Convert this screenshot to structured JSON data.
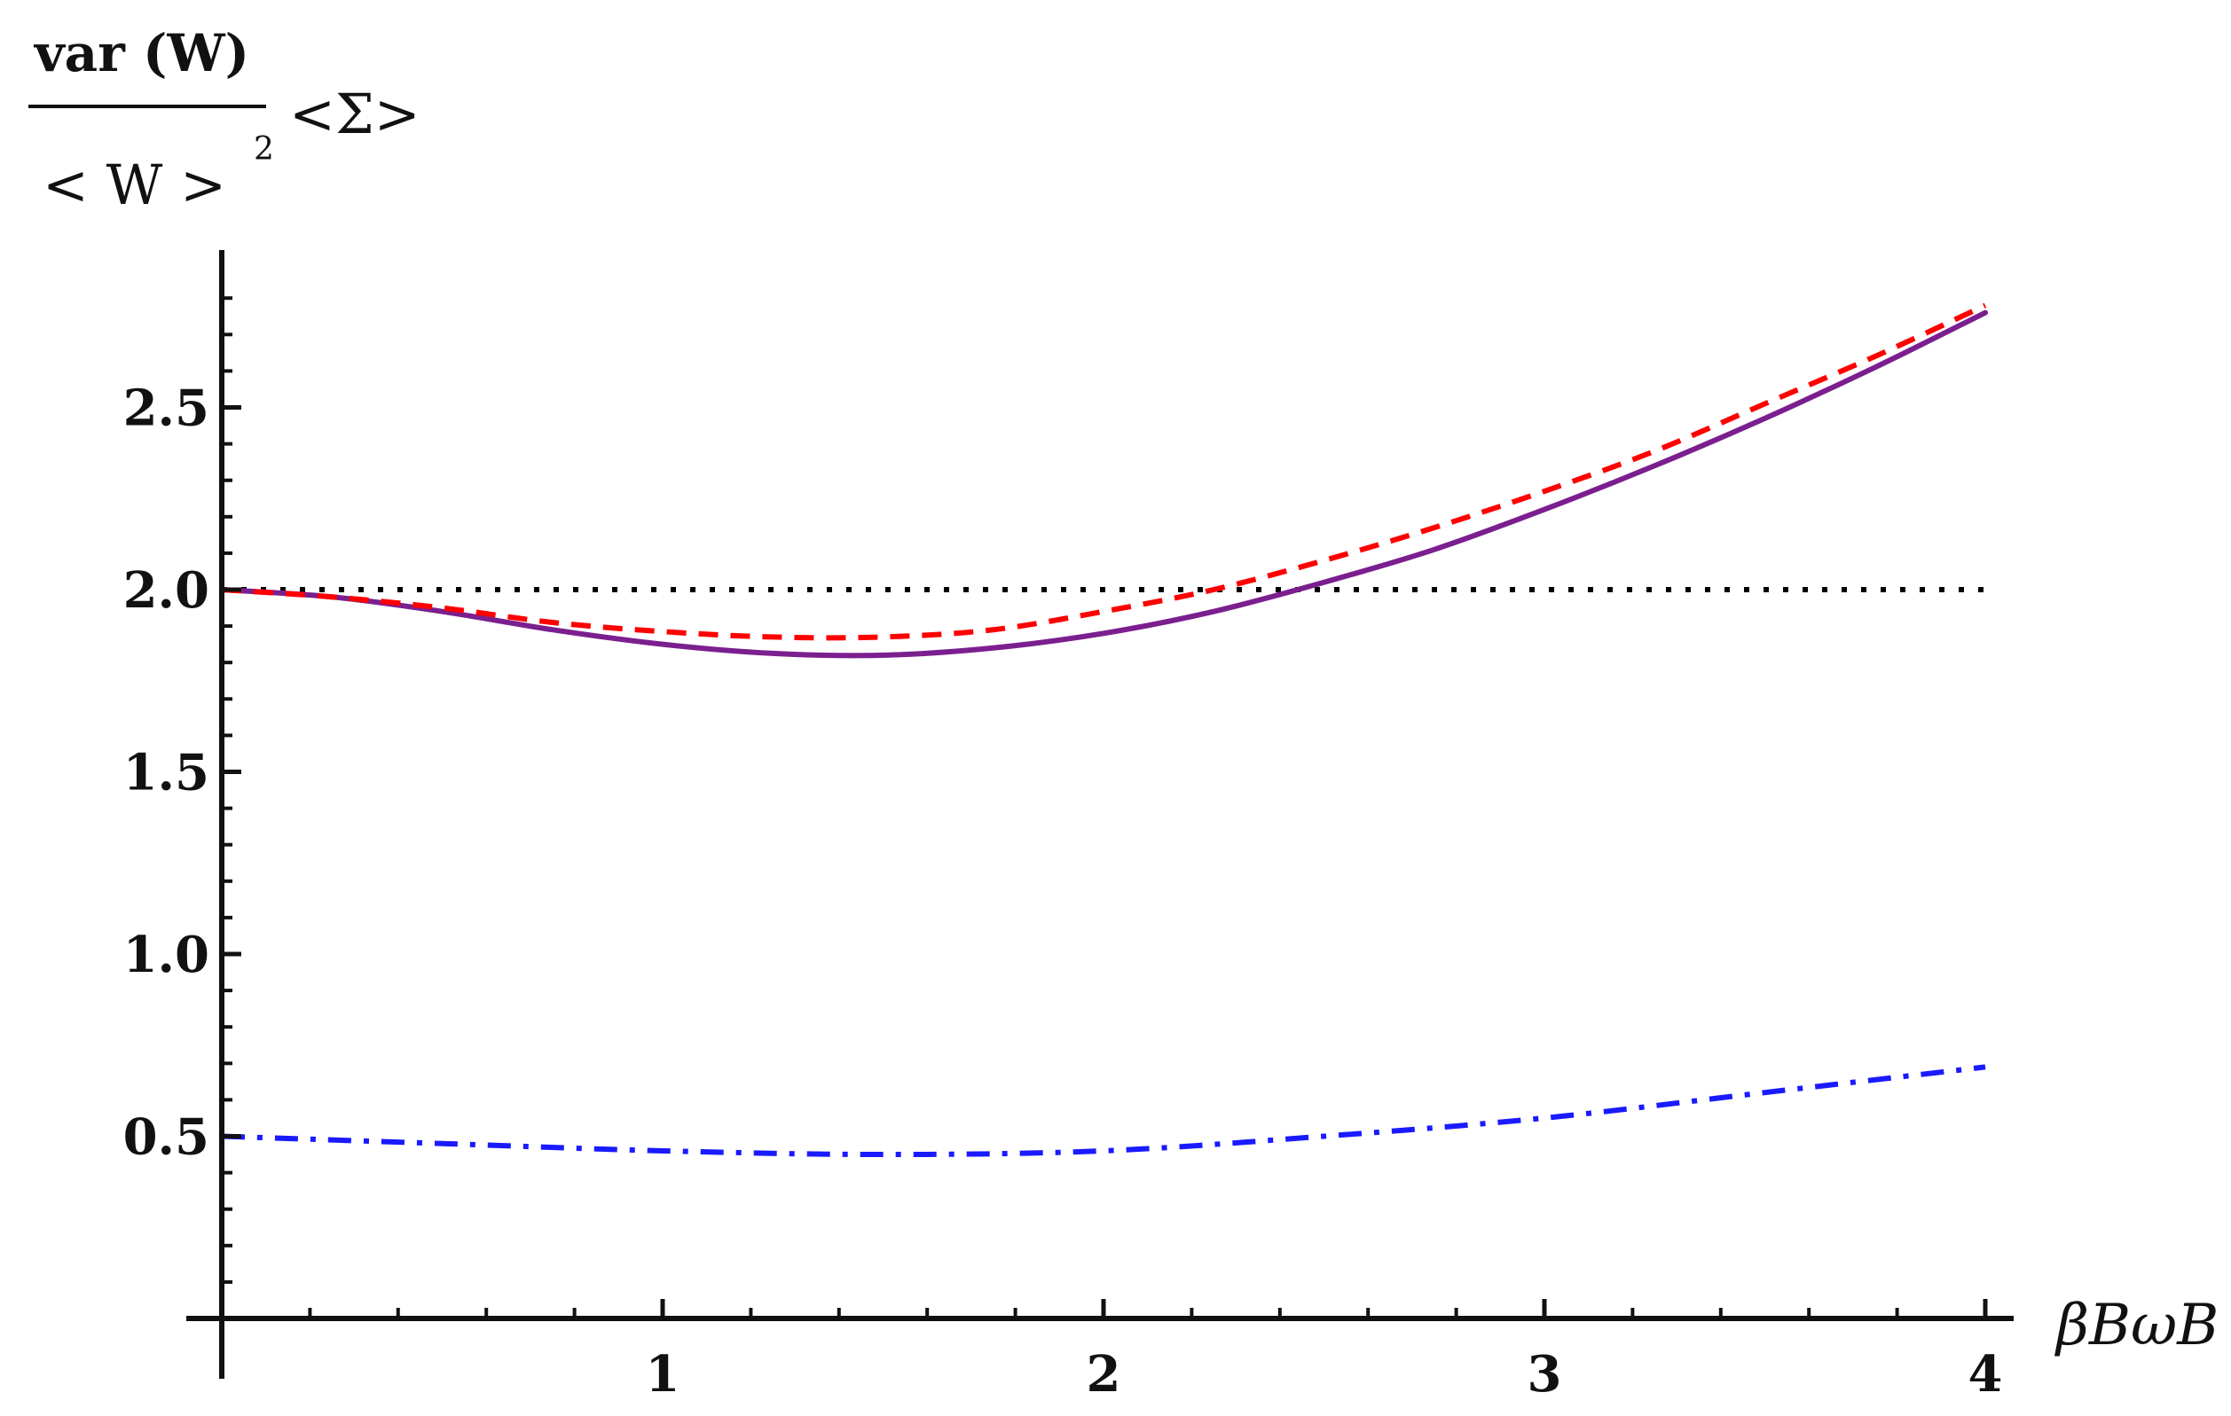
{
  "chart_data": {
    "type": "line",
    "xlabel": "βBωB",
    "ylabel": {
      "numerator": "var (W)",
      "denominator": "< W >",
      "denominator_superscript": "2",
      "suffix": "<Σ>"
    },
    "xlim": [
      0,
      4
    ],
    "ylim": [
      0,
      2.85
    ],
    "x_ticks": [
      1,
      2,
      3,
      4
    ],
    "y_ticks": [
      0.5,
      1.0,
      1.5,
      2.0,
      2.5
    ],
    "x_tick_labels": [
      "1",
      "2",
      "3",
      "4"
    ],
    "y_tick_labels": [
      "0.5",
      "1.0",
      "1.5",
      "2.0",
      "2.5"
    ],
    "grid": false,
    "legend": "none",
    "series": [
      {
        "style": "dotted",
        "color": "#000000",
        "x": [
          0,
          4
        ],
        "y": [
          2.0,
          2.0
        ]
      },
      {
        "style": "solid",
        "color": "#7b1f8f",
        "x": [
          0,
          0.25,
          0.5,
          0.75,
          1.0,
          1.25,
          1.5,
          1.75,
          2.0,
          2.25,
          2.5,
          2.75,
          3.0,
          3.25,
          3.5,
          3.75,
          4.0
        ],
        "y": [
          2.0,
          1.98,
          1.94,
          1.89,
          1.85,
          1.825,
          1.82,
          1.84,
          1.88,
          1.94,
          2.02,
          2.11,
          2.22,
          2.34,
          2.47,
          2.61,
          2.76
        ]
      },
      {
        "style": "dashed",
        "color": "#ff0000",
        "x": [
          0,
          0.25,
          0.5,
          0.75,
          1.0,
          1.25,
          1.5,
          1.75,
          2.0,
          2.25,
          2.5,
          2.75,
          3.0,
          3.25,
          3.5,
          3.75,
          4.0
        ],
        "y": [
          2.0,
          1.98,
          1.95,
          1.91,
          1.885,
          1.87,
          1.87,
          1.89,
          1.94,
          2.0,
          2.08,
          2.17,
          2.27,
          2.38,
          2.51,
          2.64,
          2.78
        ]
      },
      {
        "style": "dashdot",
        "color": "#1a1aff",
        "x": [
          0,
          0.5,
          1.0,
          1.5,
          2.0,
          2.5,
          3.0,
          3.5,
          4.0
        ],
        "y": [
          0.5,
          0.48,
          0.46,
          0.45,
          0.46,
          0.5,
          0.55,
          0.62,
          0.69
        ]
      }
    ]
  }
}
